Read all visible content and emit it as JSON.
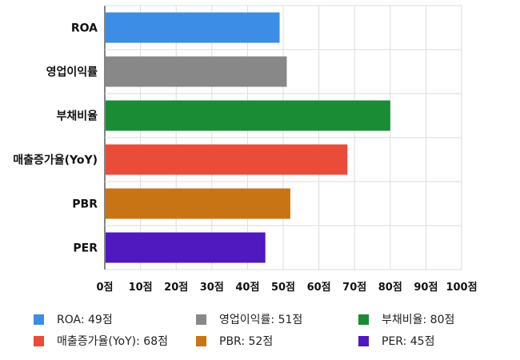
{
  "chart_data": {
    "type": "bar",
    "orientation": "horizontal",
    "categories": [
      "ROA",
      "영업이익률",
      "부채비율",
      "매출증가율(YoY)",
      "PBR",
      "PER"
    ],
    "values": [
      49,
      51,
      80,
      68,
      52,
      45
    ],
    "colors": [
      "#3b8de6",
      "#888888",
      "#1a8c35",
      "#ea4c3a",
      "#c97414",
      "#5018bf"
    ],
    "xlim": [
      0,
      100
    ],
    "xticks": [
      0,
      10,
      20,
      30,
      40,
      50,
      60,
      70,
      80,
      90,
      100
    ],
    "tick_unit": "점",
    "grid": true,
    "legend_position": "bottom",
    "legend": [
      {
        "label": "ROA: 49점",
        "color": "#3b8de6"
      },
      {
        "label": "영업이익률: 51점",
        "color": "#888888"
      },
      {
        "label": "부채비율: 80점",
        "color": "#1a8c35"
      },
      {
        "label": "매출증가율(YoY): 68점",
        "color": "#ea4c3a"
      },
      {
        "label": "PBR: 52점",
        "color": "#c97414"
      },
      {
        "label": "PER: 45점",
        "color": "#5018bf"
      }
    ]
  }
}
